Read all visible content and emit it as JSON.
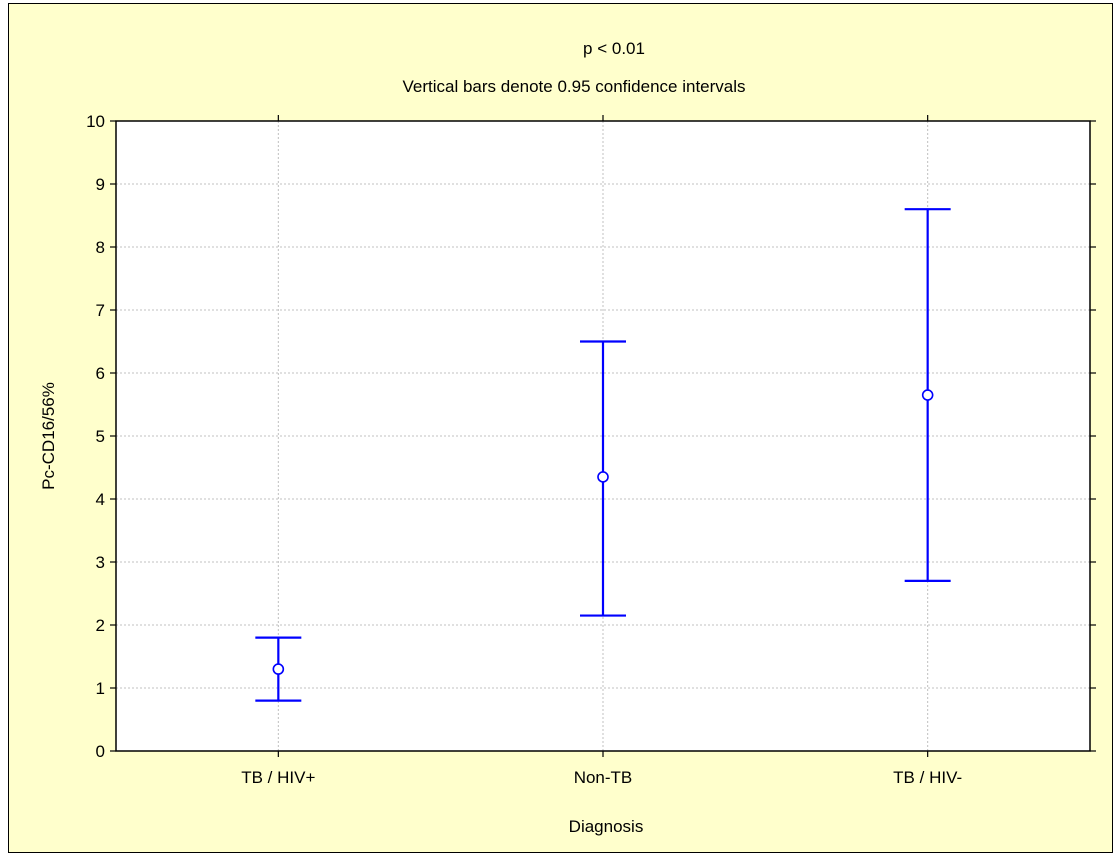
{
  "chart_data": {
    "type": "scatter",
    "title": "p < 0.01",
    "subtitle": "Vertical bars denote 0.95 confidence intervals",
    "xlabel": "Diagnosis",
    "ylabel": "Pc-CD16/56%",
    "ylim": [
      0,
      10
    ],
    "yticks": [
      0,
      1,
      2,
      3,
      4,
      5,
      6,
      7,
      8,
      9,
      10
    ],
    "grid": true,
    "categories": [
      "TB / HIV+",
      "Non-TB",
      "TB / HIV-"
    ],
    "series": [
      {
        "values": [
          1.3,
          4.35,
          5.65
        ],
        "ci_low": [
          0.8,
          2.15,
          2.7
        ],
        "ci_high": [
          1.8,
          6.5,
          8.6
        ]
      }
    ]
  },
  "colors": {
    "background": "#ffffcc",
    "plot_area": "#ffffff",
    "errorbar": "#0000ff",
    "grid": "#c0c0c0"
  }
}
